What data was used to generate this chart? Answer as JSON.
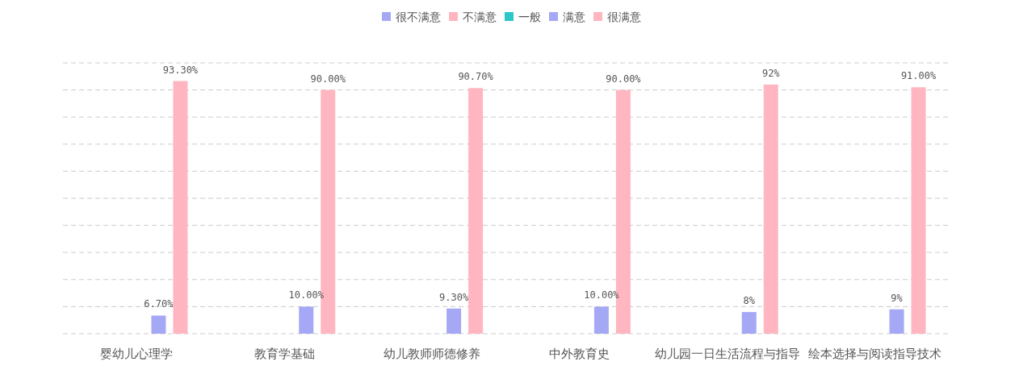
{
  "chart_data": {
    "type": "bar",
    "categories": [
      "婴幼儿心理学",
      "教育学基础",
      "幼儿教师师德修养",
      "中外教育史",
      "幼儿园一日生活流程与指导",
      "绘本选择与阅读指导技术"
    ],
    "series": [
      {
        "name": "很不满意",
        "color": "#a5a8f5",
        "values": [
          null,
          null,
          null,
          null,
          null,
          null
        ]
      },
      {
        "name": "不满意",
        "color": "#ffb6c0",
        "values": [
          null,
          null,
          null,
          null,
          null,
          null
        ]
      },
      {
        "name": "一般",
        "color": "#2ec7c9",
        "values": [
          null,
          null,
          null,
          null,
          null,
          null
        ]
      },
      {
        "name": "满意",
        "color": "#a5a8f5",
        "values": [
          6.7,
          10,
          9.3,
          10,
          8,
          9
        ],
        "value_labels": [
          "6.70%",
          "10.00%",
          "9.30%",
          "10.00%",
          "8%",
          "9%"
        ]
      },
      {
        "name": "很满意",
        "color": "#ffb6c0",
        "values": [
          93.3,
          90,
          90.7,
          90,
          92,
          91
        ],
        "value_labels": [
          "93.30%",
          "90.00%",
          "90.70%",
          "90.00%",
          "92%",
          "91.00%"
        ]
      }
    ],
    "ylim": [
      0,
      100
    ],
    "yticks": [
      {
        "value": 0,
        "label": null
      },
      {
        "value": 10,
        "label": null
      },
      {
        "value": 20,
        "label": null
      },
      {
        "value": 30,
        "label": null
      },
      {
        "value": 40,
        "label": null
      },
      {
        "value": 50,
        "label": null
      },
      {
        "value": 60,
        "label": null
      },
      {
        "value": 70,
        "label": null
      },
      {
        "value": 80,
        "label": null
      },
      {
        "value": 90,
        "label": null
      },
      {
        "value": 100,
        "label": null
      }
    ],
    "grid": "y",
    "tick_labels": "x",
    "legend": "top"
  }
}
